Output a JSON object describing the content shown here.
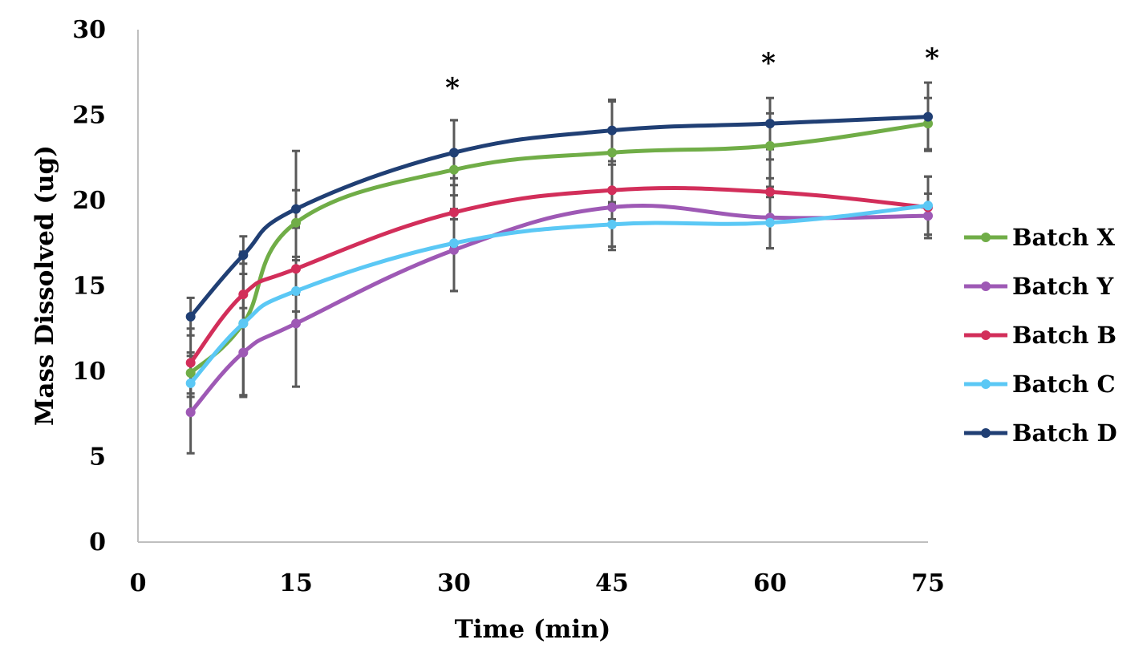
{
  "chart_data": {
    "type": "line",
    "title": "",
    "xlabel": "Time (min)",
    "ylabel": "Mass Dissolved (ug)",
    "xlim": [
      0,
      75
    ],
    "ylim": [
      0,
      30
    ],
    "x_ticks": [
      "0",
      "15",
      "30",
      "45",
      "60",
      "75"
    ],
    "y_ticks": [
      "0",
      "5",
      "10",
      "15",
      "20",
      "25",
      "30"
    ],
    "x": [
      5,
      10,
      15,
      30,
      45,
      60,
      75
    ],
    "grid": false,
    "legend_position": "right",
    "series": [
      {
        "name": "Batch X",
        "color": "#70ad47",
        "values": [
          9.9,
          12.8,
          18.7,
          21.8,
          22.8,
          23.2,
          24.5
        ],
        "errors": [
          1.2,
          4.2,
          4.2,
          2.9,
          3.0,
          1.9,
          1.5
        ]
      },
      {
        "name": "Batch Y",
        "color": "#9e59b5",
        "values": [
          7.6,
          11.1,
          12.8,
          17.1,
          19.6,
          19.0,
          19.1
        ],
        "errors": [
          2.4,
          2.6,
          3.7,
          2.4,
          2.5,
          1.8,
          1.3
        ]
      },
      {
        "name": "Batch B",
        "color": "#d22e5a",
        "values": [
          10.5,
          14.5,
          16.0,
          19.3,
          20.6,
          20.5,
          19.6
        ],
        "errors": [
          2.0,
          1.8,
          2.5,
          2.0,
          1.7,
          1.9,
          1.8
        ]
      },
      {
        "name": "Batch C",
        "color": "#5bc8f5",
        "values": [
          9.3,
          12.8,
          14.7,
          17.5,
          18.6,
          18.7,
          19.7
        ],
        "errors": [
          1.6,
          4.2,
          2.0,
          2.8,
          1.3,
          1.5,
          1.7
        ]
      },
      {
        "name": "Batch D",
        "color": "#203f74",
        "values": [
          13.2,
          16.8,
          19.5,
          22.8,
          24.1,
          24.5,
          24.9
        ],
        "errors": [
          1.1,
          1.1,
          1.1,
          1.9,
          1.8,
          1.5,
          2.0
        ]
      }
    ],
    "annotations": [
      {
        "text": "*",
        "x": 30
      },
      {
        "text": "*",
        "x": 60
      },
      {
        "text": "*",
        "x": 75
      }
    ]
  }
}
